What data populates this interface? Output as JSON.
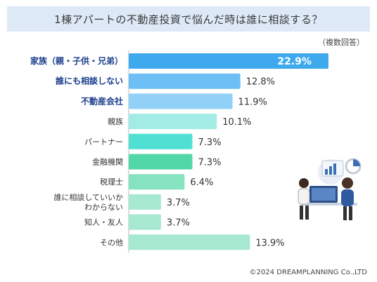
{
  "title": "1棟アパートの不動産投資で悩んだ時は誰に相談する？",
  "note": "（複数回答）",
  "footer": "©2024 DREAMPLANNING Co.,LTD",
  "chart_data": {
    "type": "bar",
    "orientation": "horizontal",
    "title": "1棟アパートの不動産投資で悩んだ時は誰に相談する？",
    "xlabel": "",
    "ylabel": "",
    "xlim": [
      0,
      25
    ],
    "grid": false,
    "legend": "none",
    "unit": "%",
    "categories": [
      "家族（親・子供・兄弟）",
      "誰にも相談しない",
      "不動産会社",
      "親族",
      "パートナー",
      "金融機関",
      "税理士",
      "誰に相談していいか\nわからない",
      "知人・友人",
      "その他"
    ],
    "values": [
      22.9,
      12.8,
      11.9,
      10.1,
      7.3,
      7.3,
      6.4,
      3.7,
      3.7,
      13.9
    ],
    "value_labels": [
      "22.9%",
      "12.8%",
      "11.9%",
      "10.1%",
      "7.3%",
      "7.3%",
      "6.4%",
      "3.7%",
      "3.7%",
      "13.9%"
    ],
    "highlighted_categories": [
      "家族（親・子供・兄弟）",
      "誰にも相談しない",
      "不動産会社"
    ],
    "bar_colors": [
      "#3fa9ee",
      "#6dbff5",
      "#92d1f7",
      "#a3ece6",
      "#4fe0d3",
      "#52d7a6",
      "#86e3bf",
      "#a7e8d0",
      "#a7e8d0",
      "#a7e8d0"
    ]
  }
}
